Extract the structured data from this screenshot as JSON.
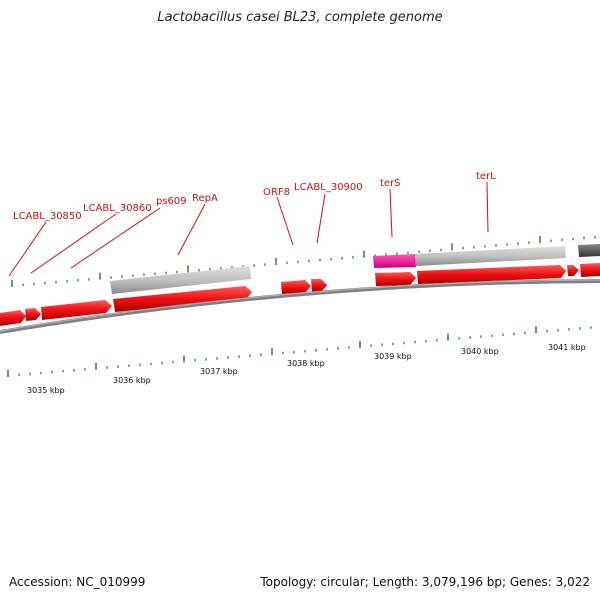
{
  "title": "Lactobacillus casei BL23, complete genome",
  "accession": "Accession: NC_010999",
  "summary": "Topology: circular; Length: 3,079,196 bp; Genes: 3,022",
  "gene_labels": [
    {
      "id": "lcabl-30850",
      "text": "LCABL_30850"
    },
    {
      "id": "lcabl-30860",
      "text": "LCABL_30860"
    },
    {
      "id": "ps609",
      "text": "ps609"
    },
    {
      "id": "repa",
      "text": "RepA"
    },
    {
      "id": "orf8",
      "text": "ORF8"
    },
    {
      "id": "lcabl-30900",
      "text": "LCABL_30900"
    },
    {
      "id": "ters",
      "text": "terS"
    },
    {
      "id": "terl",
      "text": "terL"
    }
  ],
  "scale_labels": [
    "3035 kbp",
    "3036 kbp",
    "3037 kbp",
    "3038 kbp",
    "3039 kbp",
    "3040 kbp",
    "3041 kbp"
  ],
  "colors": {
    "gene": "#ee1111",
    "gene_dark": "#b00000",
    "pseudo": "#bdbdbd",
    "pink": "#ee1199",
    "dark_gray": "#555555",
    "backbone": "#777777",
    "tick": "#227722",
    "label": "#cc1111"
  }
}
